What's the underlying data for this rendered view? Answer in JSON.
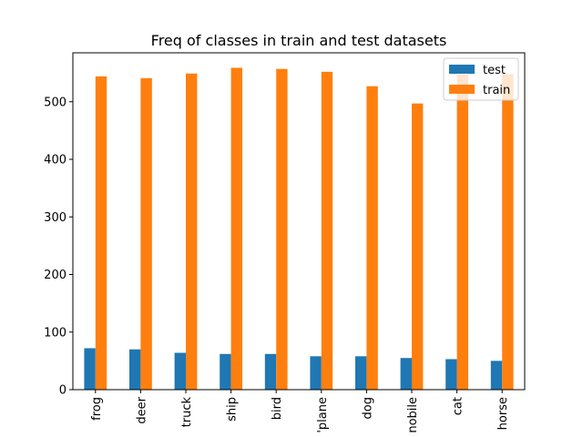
{
  "chart_data": {
    "type": "bar",
    "title": "Freq of classes in train and test datasets",
    "xlabel": "",
    "ylabel": "",
    "categories": [
      "frog",
      "deer",
      "truck",
      "ship",
      "bird",
      "'plane",
      "dog",
      "nobile",
      "cat",
      "horse"
    ],
    "series": [
      {
        "name": "test",
        "color": "#1f77b4",
        "values": [
          72,
          70,
          64,
          62,
          62,
          58,
          58,
          55,
          53,
          50
        ]
      },
      {
        "name": "train",
        "color": "#ff7f0e",
        "values": [
          544,
          541,
          549,
          559,
          557,
          552,
          527,
          497,
          547,
          548
        ]
      }
    ],
    "ylim": [
      0,
      585
    ],
    "yticks": [
      0,
      100,
      200,
      300,
      400,
      500
    ],
    "grid": false,
    "legend_position": "top-right"
  }
}
